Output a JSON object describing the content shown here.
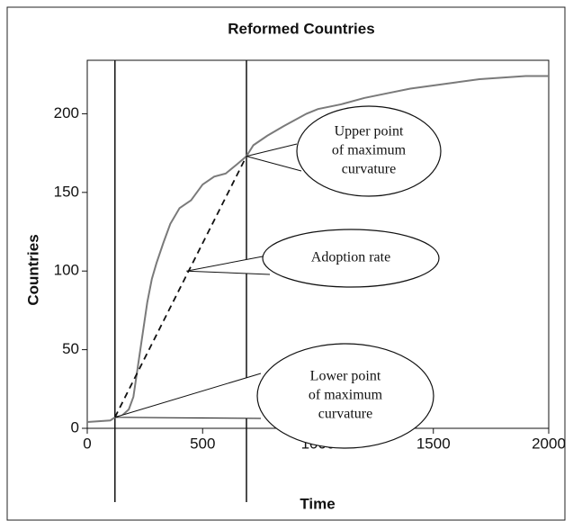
{
  "chart_data": {
    "type": "line",
    "title": "Reformed Countries",
    "x_label": "Time",
    "y_label": "Countries",
    "xlim": [
      0,
      2000
    ],
    "ylim": [
      0,
      234
    ],
    "xticks": [
      0,
      500,
      1000,
      1500,
      2000
    ],
    "yticks": [
      0,
      50,
      100,
      150,
      200
    ],
    "grid": false,
    "series": [
      {
        "color": "#7a7a7a",
        "x": [
          0,
          100,
          120,
          150,
          180,
          200,
          220,
          240,
          260,
          280,
          300,
          330,
          360,
          400,
          450,
          500,
          550,
          600,
          650,
          690,
          720,
          780,
          850,
          900,
          950,
          1000,
          1100,
          1200,
          1300,
          1400,
          1500,
          1600,
          1700,
          1800,
          1900,
          2000
        ],
        "values": [
          4,
          5,
          7,
          8,
          12,
          20,
          40,
          60,
          80,
          95,
          105,
          118,
          130,
          140,
          145,
          155,
          160,
          162,
          168,
          173,
          180,
          186,
          192,
          196,
          200,
          203,
          206,
          210,
          213,
          216,
          218,
          220,
          222,
          223,
          224,
          224
        ]
      }
    ],
    "vertical_lines": [
      120,
      690
    ],
    "dashed_segment": {
      "x": [
        120,
        690
      ],
      "y": [
        7,
        173
      ]
    },
    "annotations": [
      {
        "text": [
          "Upper point",
          "of maximum",
          "curvature"
        ],
        "x": 690,
        "y": 173
      },
      {
        "text": [
          "Adoption rate"
        ],
        "x": 430,
        "y": 100
      },
      {
        "text": [
          "Lower point",
          "of maximum",
          "curvature"
        ],
        "x": 120,
        "y": 7
      }
    ]
  }
}
